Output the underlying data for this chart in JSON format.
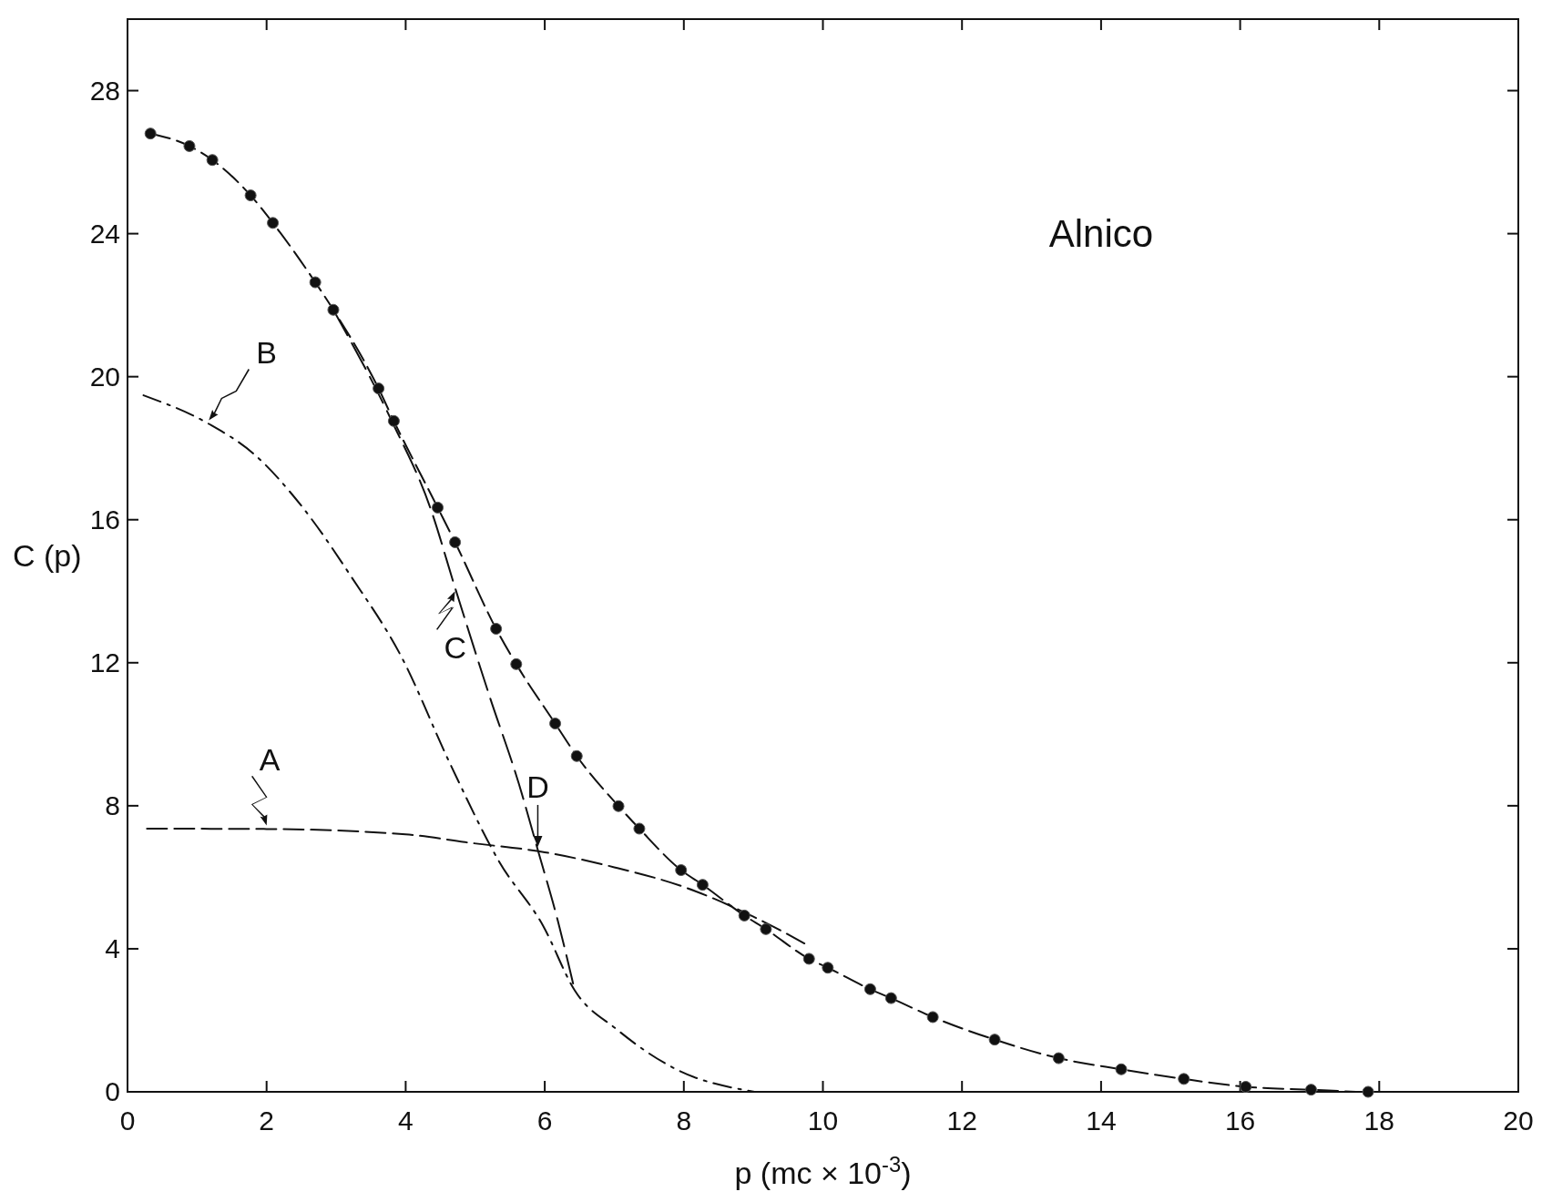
{
  "chart_data": {
    "type": "scatter",
    "xlabel": "p  (mc × 10$^{-3}$)",
    "ylabel": "C (p)",
    "xlim": [
      0,
      20
    ],
    "ylim": [
      0,
      30
    ],
    "xticks": [
      0,
      2,
      4,
      6,
      8,
      10,
      12,
      14,
      16,
      18,
      20
    ],
    "yticks": [
      0,
      4,
      8,
      12,
      16,
      20,
      24,
      28
    ],
    "grid": false,
    "annotations": [
      "Alnico",
      {
        "text": "D",
        "x": 5.9,
        "y": 6.75
      }
    ],
    "series": [
      {
        "type": "line",
        "color": "#111111",
        "line_style": "dashed",
        "x": [
          0.33,
          0.89,
          1.22,
          1.77,
          2.09,
          2.7,
          2.96,
          3.61,
          3.83,
          4.46,
          4.71,
          5.3,
          5.59,
          6.15,
          6.46,
          7.06,
          7.36,
          7.96,
          8.27,
          8.87,
          9.18,
          9.8,
          10.07,
          10.68,
          10.98,
          11.58,
          12.47,
          13.39,
          14.29,
          15.19,
          16.08,
          17.02,
          17.84,
          18.2
        ],
        "values": [
          26.8,
          26.45,
          26.06,
          25.07,
          24.3,
          22.64,
          21.87,
          19.67,
          18.76,
          16.34,
          15.37,
          12.95,
          11.96,
          10.3,
          9.39,
          7.99,
          7.36,
          6.2,
          5.79,
          4.93,
          4.55,
          3.72,
          3.47,
          2.87,
          2.62,
          2.09,
          1.46,
          0.94,
          0.63,
          0.36,
          0.14,
          0.06,
          0.0,
          0.0
        ]
      },
      {
        "type": "line",
        "name": "A",
        "color": "#111111",
        "line_style": "dashed",
        "x": [
          0.28,
          2,
          4,
          4.9,
          6,
          7,
          8,
          9,
          9.8
        ],
        "values": [
          7.36,
          7.35,
          7.2,
          6.97,
          6.7,
          6.28,
          5.73,
          4.9,
          4.08
        ]
      },
      {
        "type": "line",
        "name": "B",
        "color": "#111111",
        "line_style": "dashdot",
        "x": [
          0.23,
          1.17,
          1.81,
          2.52,
          3.22,
          3.93,
          4.64,
          5.35,
          5.98,
          6.43,
          7.04,
          7.89,
          9.02
        ],
        "values": [
          19.48,
          18.68,
          17.85,
          16.34,
          14.4,
          12.2,
          9.17,
          6.42,
          4.63,
          2.84,
          1.74,
          0.63,
          0
        ]
      },
      {
        "type": "line",
        "name": "C",
        "color": "#111111",
        "line_style": "longdash",
        "x": [
          2.96,
          3.79,
          4.36,
          4.71,
          5.2,
          5.63,
          5.91,
          6.19,
          6.43
        ],
        "values": [
          21.87,
          18.8,
          16.3,
          14.1,
          11.1,
          8.6,
          6.7,
          4.77,
          2.84
        ]
      },
      {
        "color": "#111111",
        "marker": "circle",
        "x": [
          0.33,
          0.89,
          1.22,
          1.77,
          2.09,
          2.7,
          2.96,
          3.61,
          3.83,
          4.46,
          4.71,
          5.3,
          5.59,
          6.15,
          6.46,
          7.06,
          7.36,
          7.96,
          8.27,
          8.87,
          9.18,
          9.8,
          10.07,
          10.68,
          10.98,
          11.58,
          12.47,
          13.39,
          14.29,
          15.19,
          16.08,
          17.02,
          17.84
        ],
        "values": [
          26.8,
          26.45,
          26.06,
          25.07,
          24.3,
          22.64,
          21.87,
          19.67,
          18.76,
          16.34,
          15.37,
          12.95,
          11.96,
          10.3,
          9.39,
          7.99,
          7.36,
          6.2,
          5.79,
          4.93,
          4.55,
          3.72,
          3.47,
          2.87,
          2.62,
          2.09,
          1.46,
          0.94,
          0.63,
          0.36,
          0.14,
          0.06,
          0.0
        ]
      }
    ]
  }
}
